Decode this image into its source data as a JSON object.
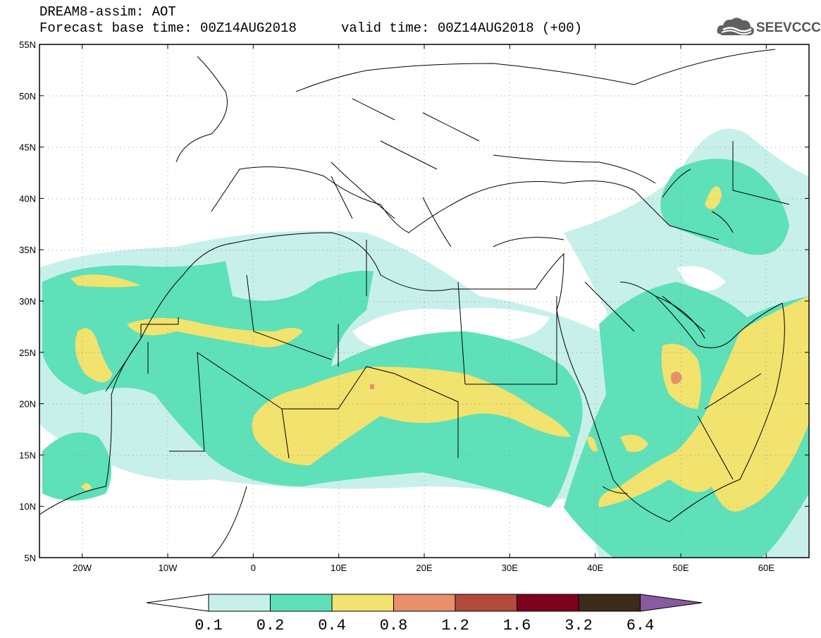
{
  "header": {
    "model_title": "DREAM8-assim: AOT",
    "base_time": "Forecast base time: 00Z14AUG2018",
    "valid_time": "valid time: 00Z14AUG2018 (+00)"
  },
  "logo": {
    "text": "SEEVCCC",
    "icon": "cloud-logo-icon"
  },
  "map": {
    "projection": "lat-lon",
    "lon_range": [
      -25,
      65
    ],
    "lat_range": [
      5,
      55
    ],
    "lat_ticks": [
      "5N",
      "10N",
      "15N",
      "20N",
      "25N",
      "30N",
      "35N",
      "40N",
      "45N",
      "50N",
      "55N"
    ],
    "lon_ticks": [
      "20W",
      "10W",
      "0",
      "10E",
      "20E",
      "30E",
      "40E",
      "50E",
      "60E"
    ],
    "grid": "dotted"
  },
  "colorbar": {
    "levels": [
      "0.1",
      "0.2",
      "0.4",
      "0.8",
      "1.2",
      "1.6",
      "3.2",
      "6.4"
    ],
    "colors": [
      "#c8f0ea",
      "#5ee0b8",
      "#f2e26e",
      "#e8906a",
      "#b04a3c",
      "#800020",
      "#3c2a1a",
      "#8a5aa0"
    ],
    "under_color": "#ffffff",
    "over_color": "#8a5aa0"
  }
}
